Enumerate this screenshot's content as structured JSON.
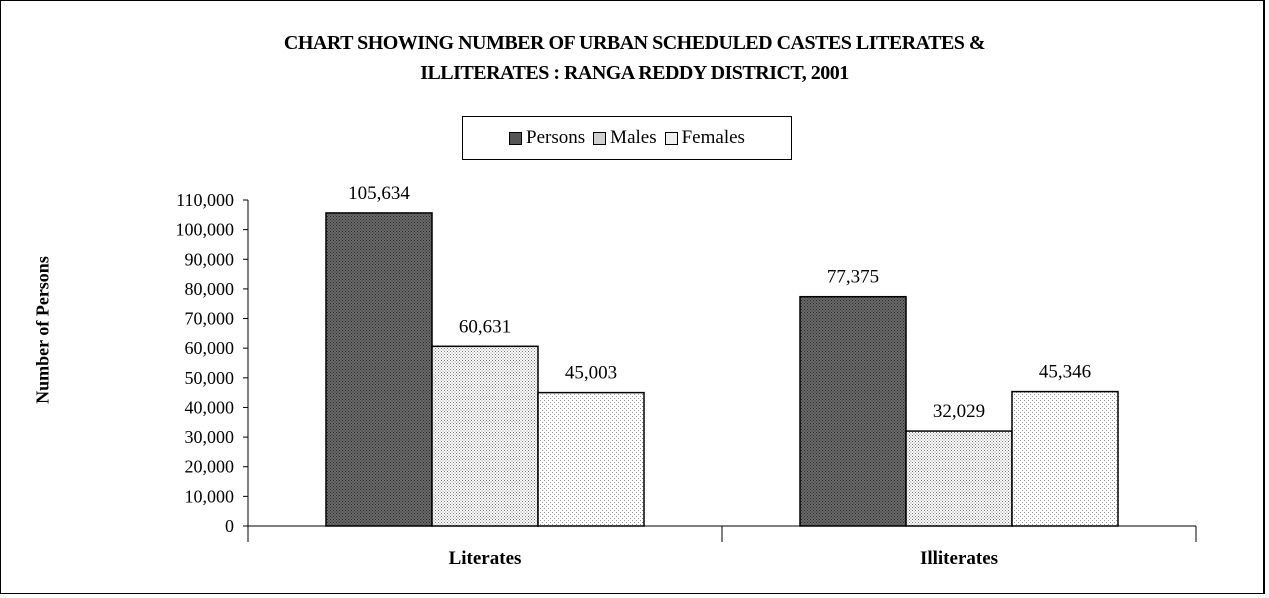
{
  "chart_data": {
    "type": "bar",
    "title_line1": "CHART SHOWING NUMBER OF URBAN SCHEDULED CASTES LITERATES &",
    "title_line2": "ILLITERATES : RANGA REDDY DISTRICT, 2001",
    "xlabel": "",
    "ylabel": "Number of Persons",
    "ylim": [
      0,
      110000
    ],
    "y_ticks": [
      "0",
      "10,000",
      "20,000",
      "30,000",
      "40,000",
      "50,000",
      "60,000",
      "70,000",
      "80,000",
      "90,000",
      "100,000",
      "110,000"
    ],
    "categories": [
      "Literates",
      "Illiterates"
    ],
    "series": [
      {
        "name": "Persons",
        "values": [
          105634,
          77375
        ],
        "labels": [
          "105,634",
          "77,375"
        ],
        "pattern": "dark"
      },
      {
        "name": "Males",
        "values": [
          60631,
          32029
        ],
        "labels": [
          "60,631",
          "32,029"
        ],
        "pattern": "medium"
      },
      {
        "name": "Females",
        "values": [
          45003,
          45346
        ],
        "labels": [
          "45,003",
          "45,346"
        ],
        "pattern": "light"
      }
    ],
    "legend_position": "top-center",
    "grid": false
  }
}
